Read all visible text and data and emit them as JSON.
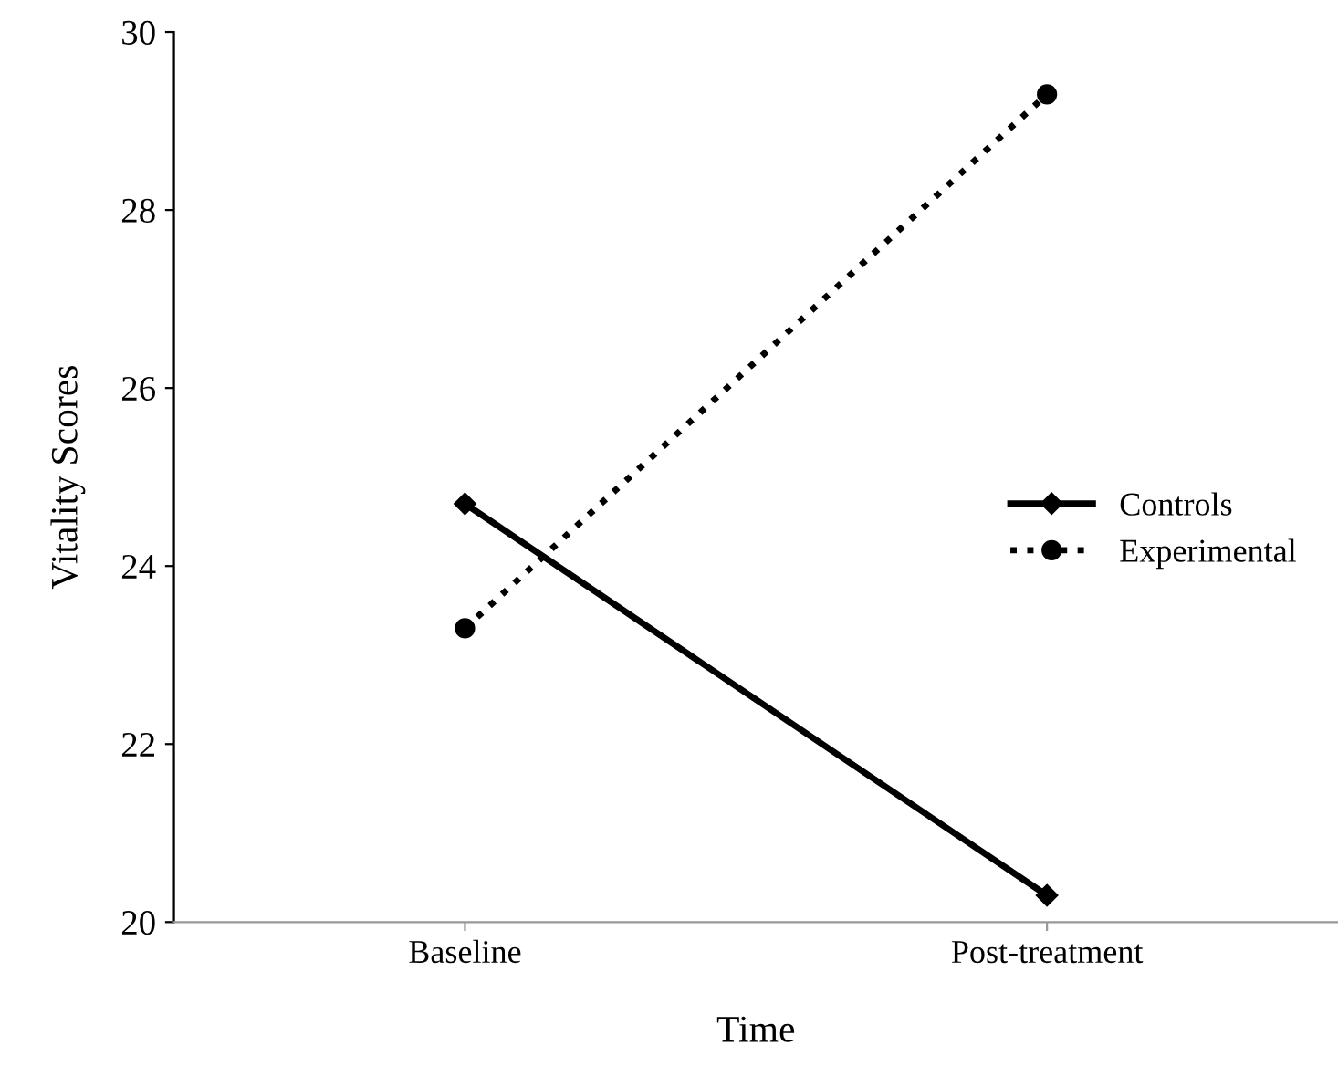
{
  "chart_data": {
    "type": "line",
    "xlabel": "Time",
    "ylabel": "Vitality Scores",
    "categories": [
      "Baseline",
      "Post-treatment"
    ],
    "series": [
      {
        "name": "Controls",
        "color": "#000000",
        "values": [
          24.7,
          20.3
        ],
        "marker": "diamond",
        "line_style": "solid"
      },
      {
        "name": "Experimental",
        "color": "#000000",
        "values": [
          23.3,
          29.3
        ],
        "marker": "circle",
        "line_style": "dotted"
      }
    ],
    "ylim": [
      20,
      30
    ],
    "yticks": [
      20,
      22,
      24,
      26,
      28,
      30
    ],
    "grid": false,
    "legend": "right"
  }
}
